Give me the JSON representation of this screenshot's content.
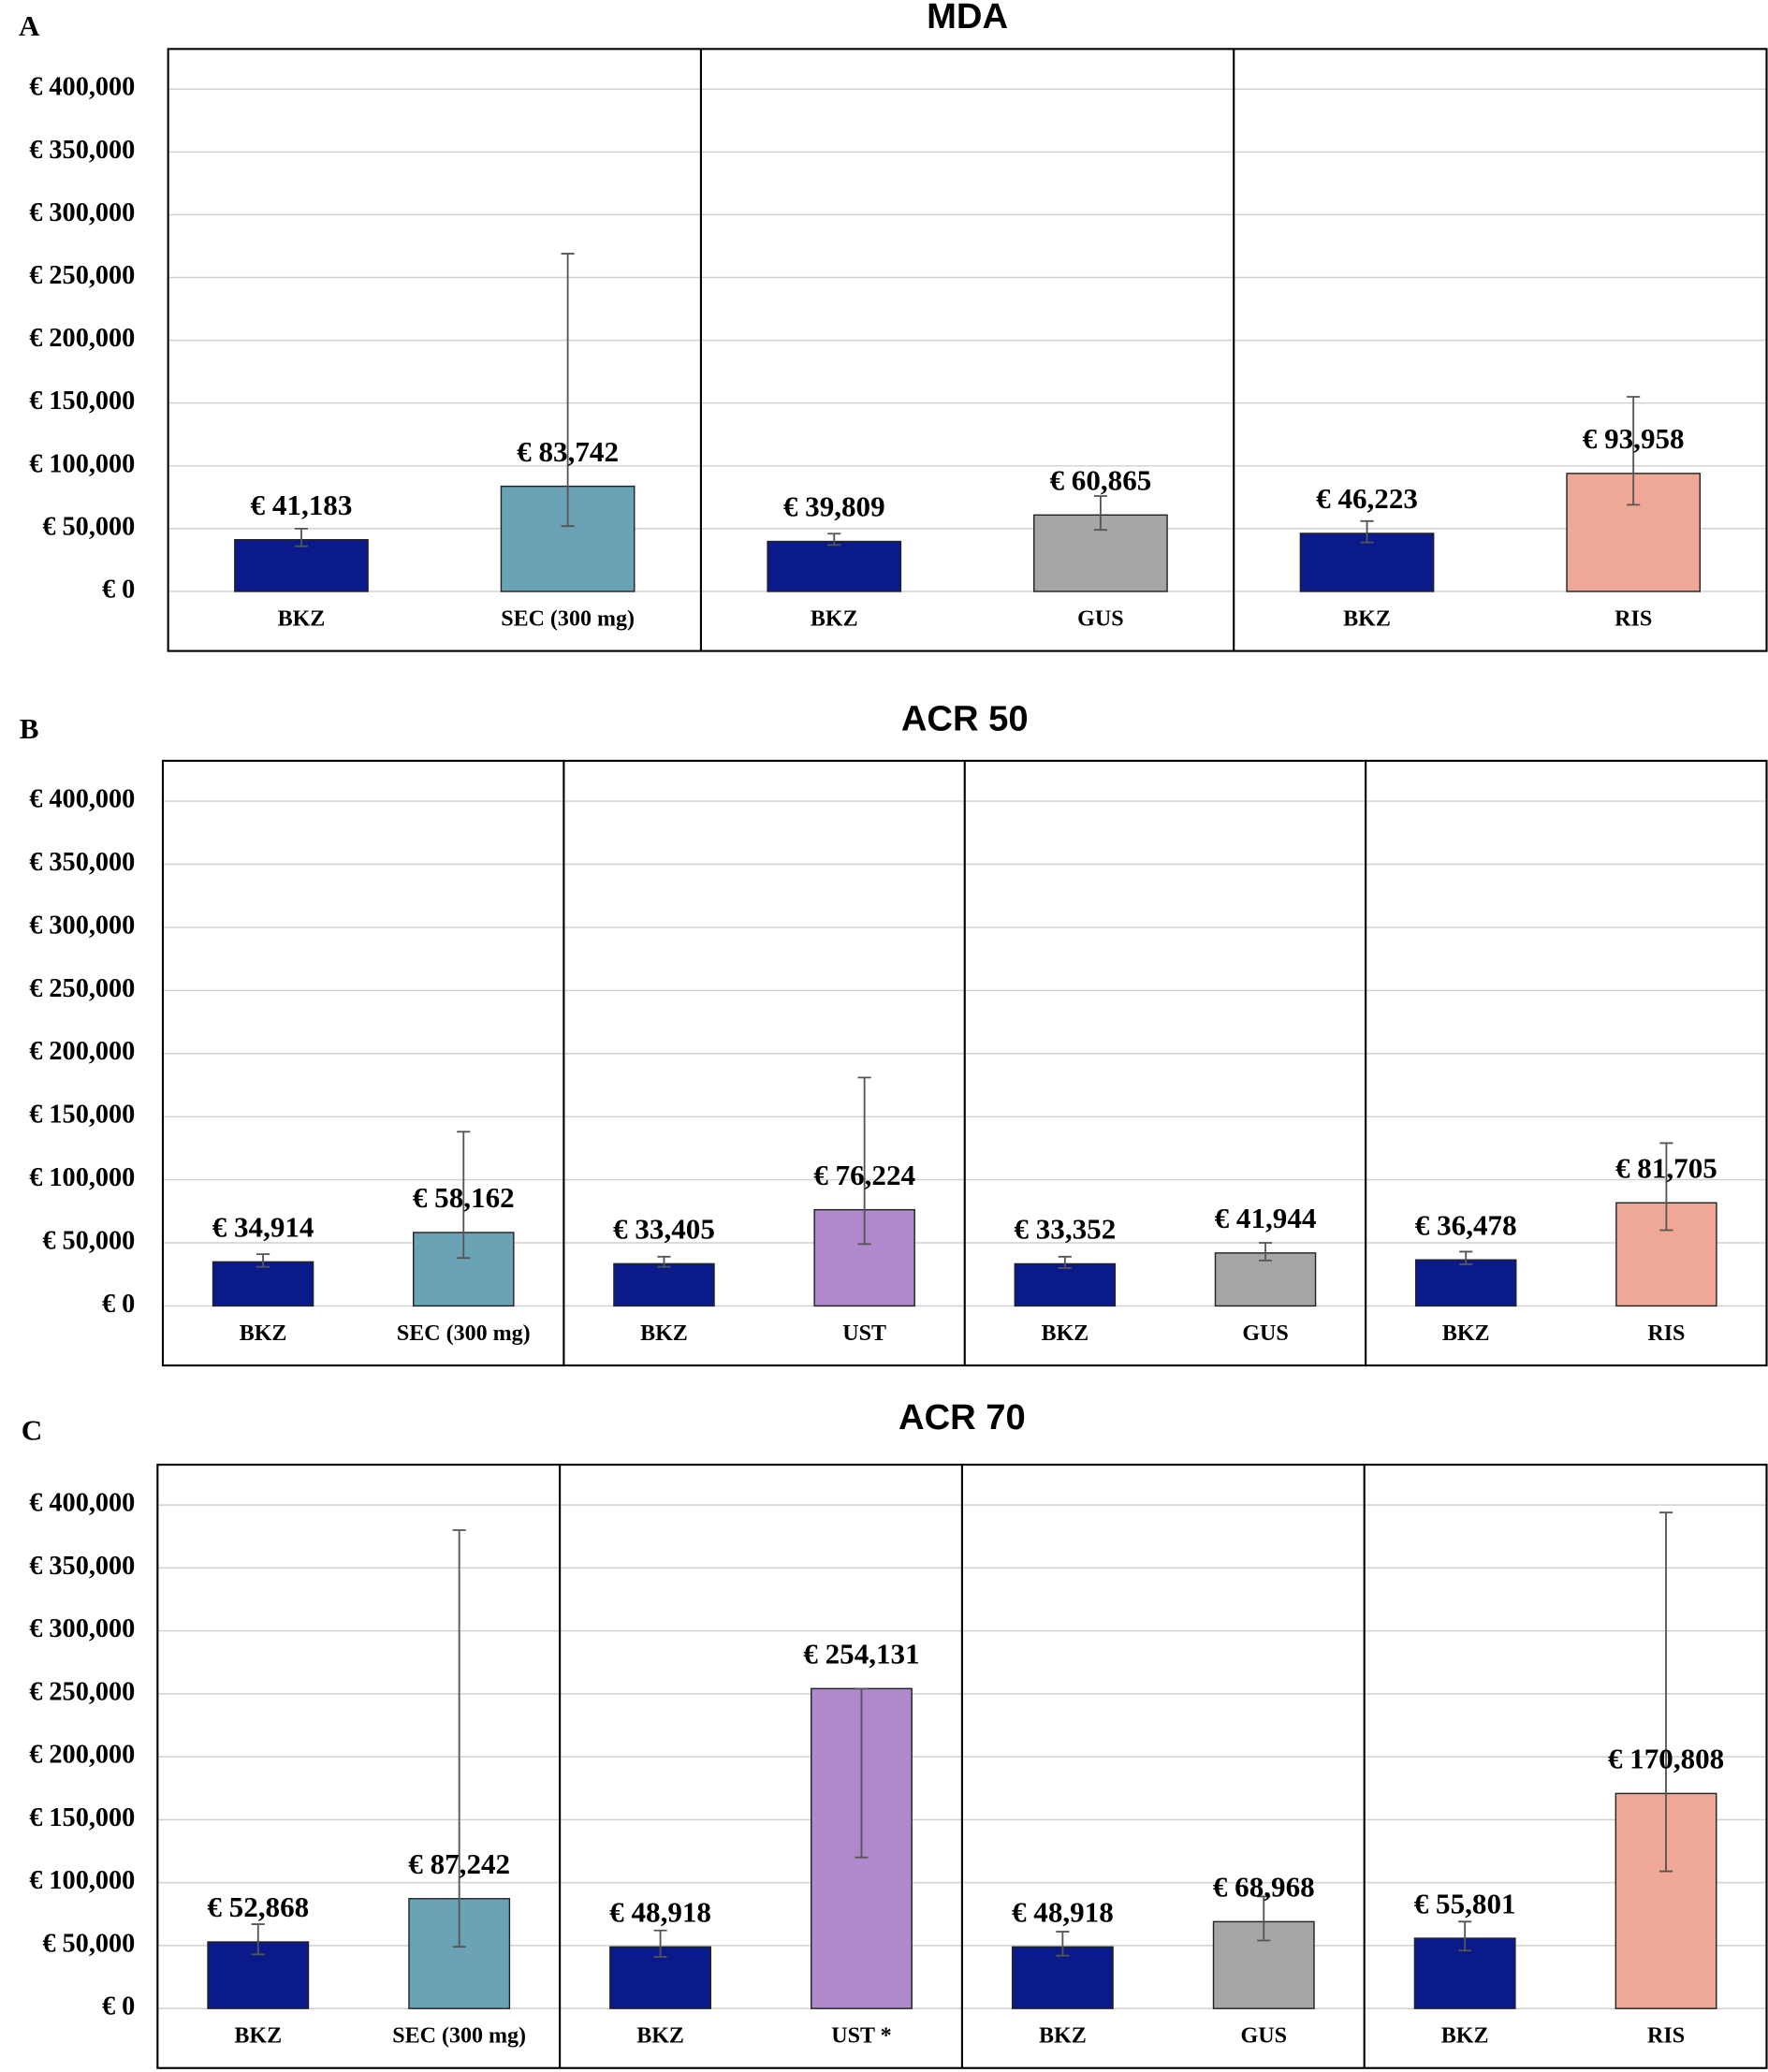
{
  "chart_data": [
    {
      "type": "bar",
      "panel_label": "A",
      "title": "MDA",
      "ylim": [
        0,
        432000
      ],
      "yticks": [
        {
          "value": 0,
          "label": "€ 0"
        },
        {
          "value": 50000,
          "label": "€ 50,000"
        },
        {
          "value": 100000,
          "label": "€ 100,000"
        },
        {
          "value": 150000,
          "label": "€ 150,000"
        },
        {
          "value": 200000,
          "label": "€ 200,000"
        },
        {
          "value": 250000,
          "label": "€ 250,000"
        },
        {
          "value": 300000,
          "label": "€ 300,000"
        },
        {
          "value": 350000,
          "label": "€ 350,000"
        },
        {
          "value": 400000,
          "label": "€ 400,000"
        }
      ],
      "grid": true,
      "groups": [
        {
          "categories": [
            "BKZ",
            "SEC (300 mg)"
          ],
          "values": [
            41183,
            83742
          ],
          "value_labels": [
            "€ 41,183",
            "€ 83,742"
          ],
          "error_low": [
            36000,
            52000
          ],
          "error_high": [
            50000,
            269000
          ],
          "colors": [
            "#0a1a8a",
            "#6aa3b6"
          ]
        },
        {
          "categories": [
            "BKZ",
            "GUS"
          ],
          "values": [
            39809,
            60865
          ],
          "value_labels": [
            "€ 39,809",
            "€ 60,865"
          ],
          "error_low": [
            37000,
            49000
          ],
          "error_high": [
            46000,
            76000
          ],
          "colors": [
            "#0a1a8a",
            "#a6a6a6"
          ]
        },
        {
          "categories": [
            "BKZ",
            "RIS"
          ],
          "values": [
            46223,
            93958
          ],
          "value_labels": [
            "€ 46,223",
            "€ 93,958"
          ],
          "error_low": [
            39000,
            69000
          ],
          "error_high": [
            56000,
            155000
          ],
          "colors": [
            "#0a1a8a",
            "#f0a896"
          ]
        }
      ]
    },
    {
      "type": "bar",
      "panel_label": "B",
      "title": "ACR 50",
      "ylim": [
        0,
        432000
      ],
      "yticks": [
        {
          "value": 0,
          "label": "€ 0"
        },
        {
          "value": 50000,
          "label": "€ 50,000"
        },
        {
          "value": 100000,
          "label": "€ 100,000"
        },
        {
          "value": 150000,
          "label": "€ 150,000"
        },
        {
          "value": 200000,
          "label": "€ 200,000"
        },
        {
          "value": 250000,
          "label": "€ 250,000"
        },
        {
          "value": 300000,
          "label": "€ 300,000"
        },
        {
          "value": 350000,
          "label": "€ 350,000"
        },
        {
          "value": 400000,
          "label": "€ 400,000"
        }
      ],
      "grid": true,
      "groups": [
        {
          "categories": [
            "BKZ",
            "SEC (300 mg)"
          ],
          "values": [
            34914,
            58162
          ],
          "value_labels": [
            "€ 34,914",
            "€ 58,162"
          ],
          "error_low": [
            31000,
            38000
          ],
          "error_high": [
            41000,
            138000
          ],
          "colors": [
            "#0a1a8a",
            "#6aa3b6"
          ]
        },
        {
          "categories": [
            "BKZ",
            "UST"
          ],
          "values": [
            33405,
            76224
          ],
          "value_labels": [
            "€ 33,405",
            "€ 76,224"
          ],
          "error_low": [
            31000,
            49000
          ],
          "error_high": [
            39000,
            181000
          ],
          "colors": [
            "#0a1a8a",
            "#b088cc"
          ]
        },
        {
          "categories": [
            "BKZ",
            "GUS"
          ],
          "values": [
            33352,
            41944
          ],
          "value_labels": [
            "€ 33,352",
            "€ 41,944"
          ],
          "error_low": [
            30000,
            36000
          ],
          "error_high": [
            39000,
            50000
          ],
          "colors": [
            "#0a1a8a",
            "#a6a6a6"
          ]
        },
        {
          "categories": [
            "BKZ",
            "RIS"
          ],
          "values": [
            36478,
            81705
          ],
          "value_labels": [
            "€ 36,478",
            "€ 81,705"
          ],
          "error_low": [
            33000,
            60000
          ],
          "error_high": [
            43000,
            129000
          ],
          "colors": [
            "#0a1a8a",
            "#f0a896"
          ]
        }
      ]
    },
    {
      "type": "bar",
      "panel_label": "C",
      "title": "ACR 70",
      "ylim": [
        0,
        432000
      ],
      "yticks": [
        {
          "value": 0,
          "label": "€ 0"
        },
        {
          "value": 50000,
          "label": "€ 50,000"
        },
        {
          "value": 100000,
          "label": "€ 100,000"
        },
        {
          "value": 150000,
          "label": "€ 150,000"
        },
        {
          "value": 200000,
          "label": "€ 200,000"
        },
        {
          "value": 250000,
          "label": "€ 250,000"
        },
        {
          "value": 300000,
          "label": "€ 300,000"
        },
        {
          "value": 350000,
          "label": "€ 350,000"
        },
        {
          "value": 400000,
          "label": "€ 400,000"
        }
      ],
      "grid": true,
      "groups": [
        {
          "categories": [
            "BKZ",
            "SEC (300 mg)"
          ],
          "values": [
            52868,
            87242
          ],
          "value_labels": [
            "€ 52,868",
            "€ 87,242"
          ],
          "error_low": [
            43000,
            49000
          ],
          "error_high": [
            67000,
            380000
          ],
          "colors": [
            "#0a1a8a",
            "#6aa3b6"
          ]
        },
        {
          "categories": [
            "BKZ",
            "UST *"
          ],
          "values": [
            48918,
            254131
          ],
          "value_labels": [
            "€ 48,918",
            "€ 254,131"
          ],
          "error_low": [
            41000,
            120000
          ],
          "error_high": [
            62000,
            254000
          ],
          "colors": [
            "#0a1a8a",
            "#b088cc"
          ]
        },
        {
          "categories": [
            "BKZ",
            "GUS"
          ],
          "values": [
            48918,
            68968
          ],
          "value_labels": [
            "€ 48,918",
            "€ 68,968"
          ],
          "error_low": [
            42000,
            54000
          ],
          "error_high": [
            61000,
            89000
          ],
          "colors": [
            "#0a1a8a",
            "#a6a6a6"
          ]
        },
        {
          "categories": [
            "BKZ",
            "RIS"
          ],
          "values": [
            55801,
            170808
          ],
          "value_labels": [
            "€ 55,801",
            "€ 170,808"
          ],
          "error_low": [
            46000,
            109000
          ],
          "error_high": [
            69000,
            394000
          ],
          "colors": [
            "#0a1a8a",
            "#f0a896"
          ]
        }
      ]
    }
  ]
}
